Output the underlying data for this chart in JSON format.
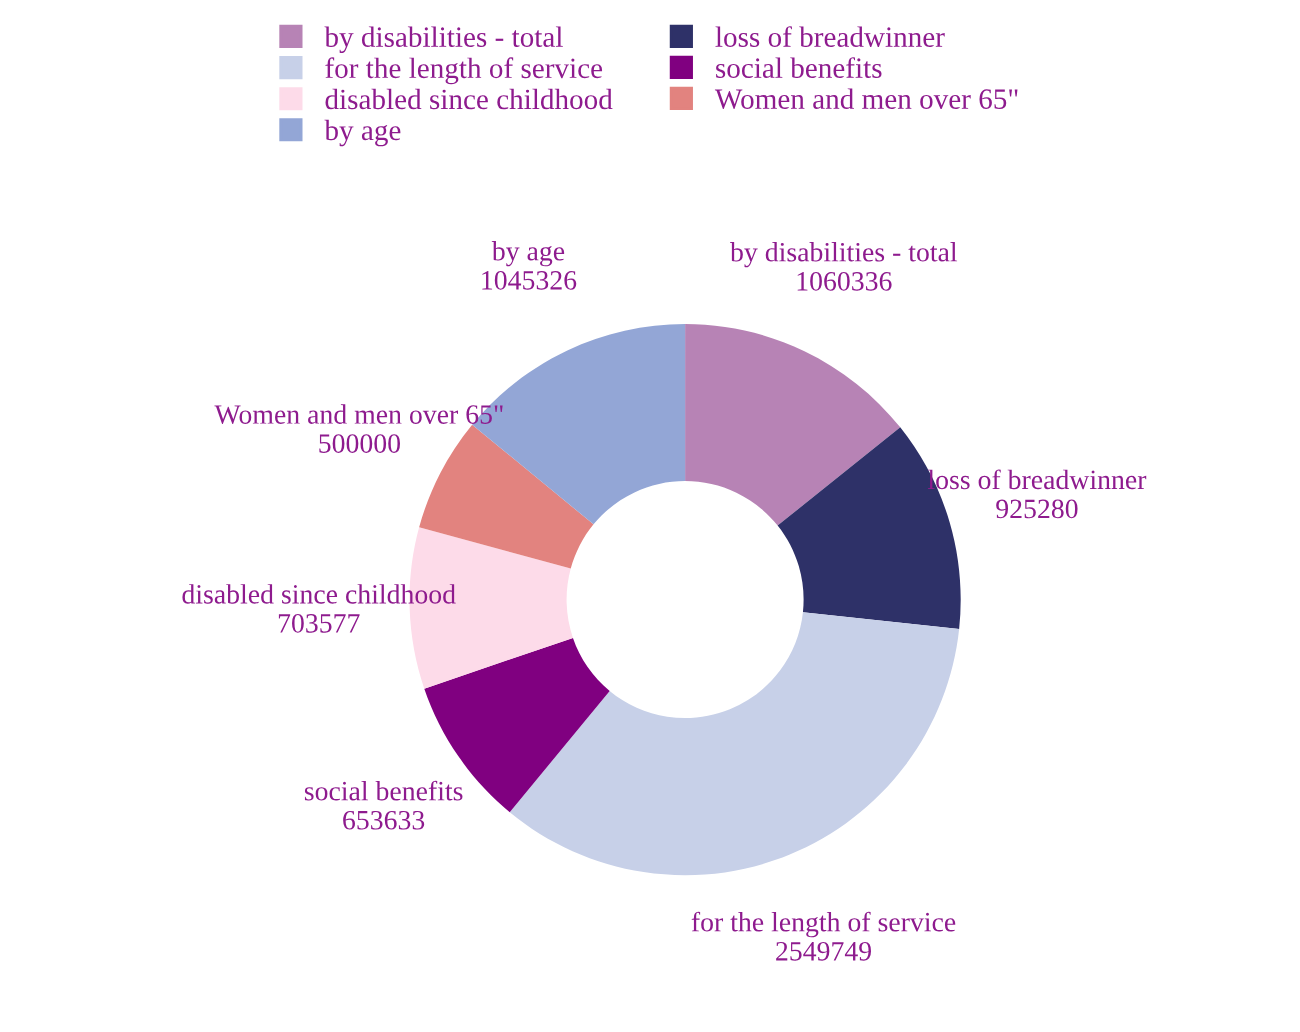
{
  "chart_data": {
    "type": "donut",
    "categories": [
      "by disabilities - total",
      "loss of breadwinner",
      "for the length of service",
      "social benefits",
      "disabled since childhood",
      "Women and men over 65\"",
      "by age"
    ],
    "values": [
      1060336,
      925280,
      2549749,
      653633,
      703577,
      500000,
      1045326
    ],
    "colors": [
      "#b783b5",
      "#2e3168",
      "#c7d0e8",
      "#800080",
      "#fddbe9",
      "#e2837f",
      "#93a6d6"
    ],
    "data_labels": true,
    "legend": "top"
  }
}
